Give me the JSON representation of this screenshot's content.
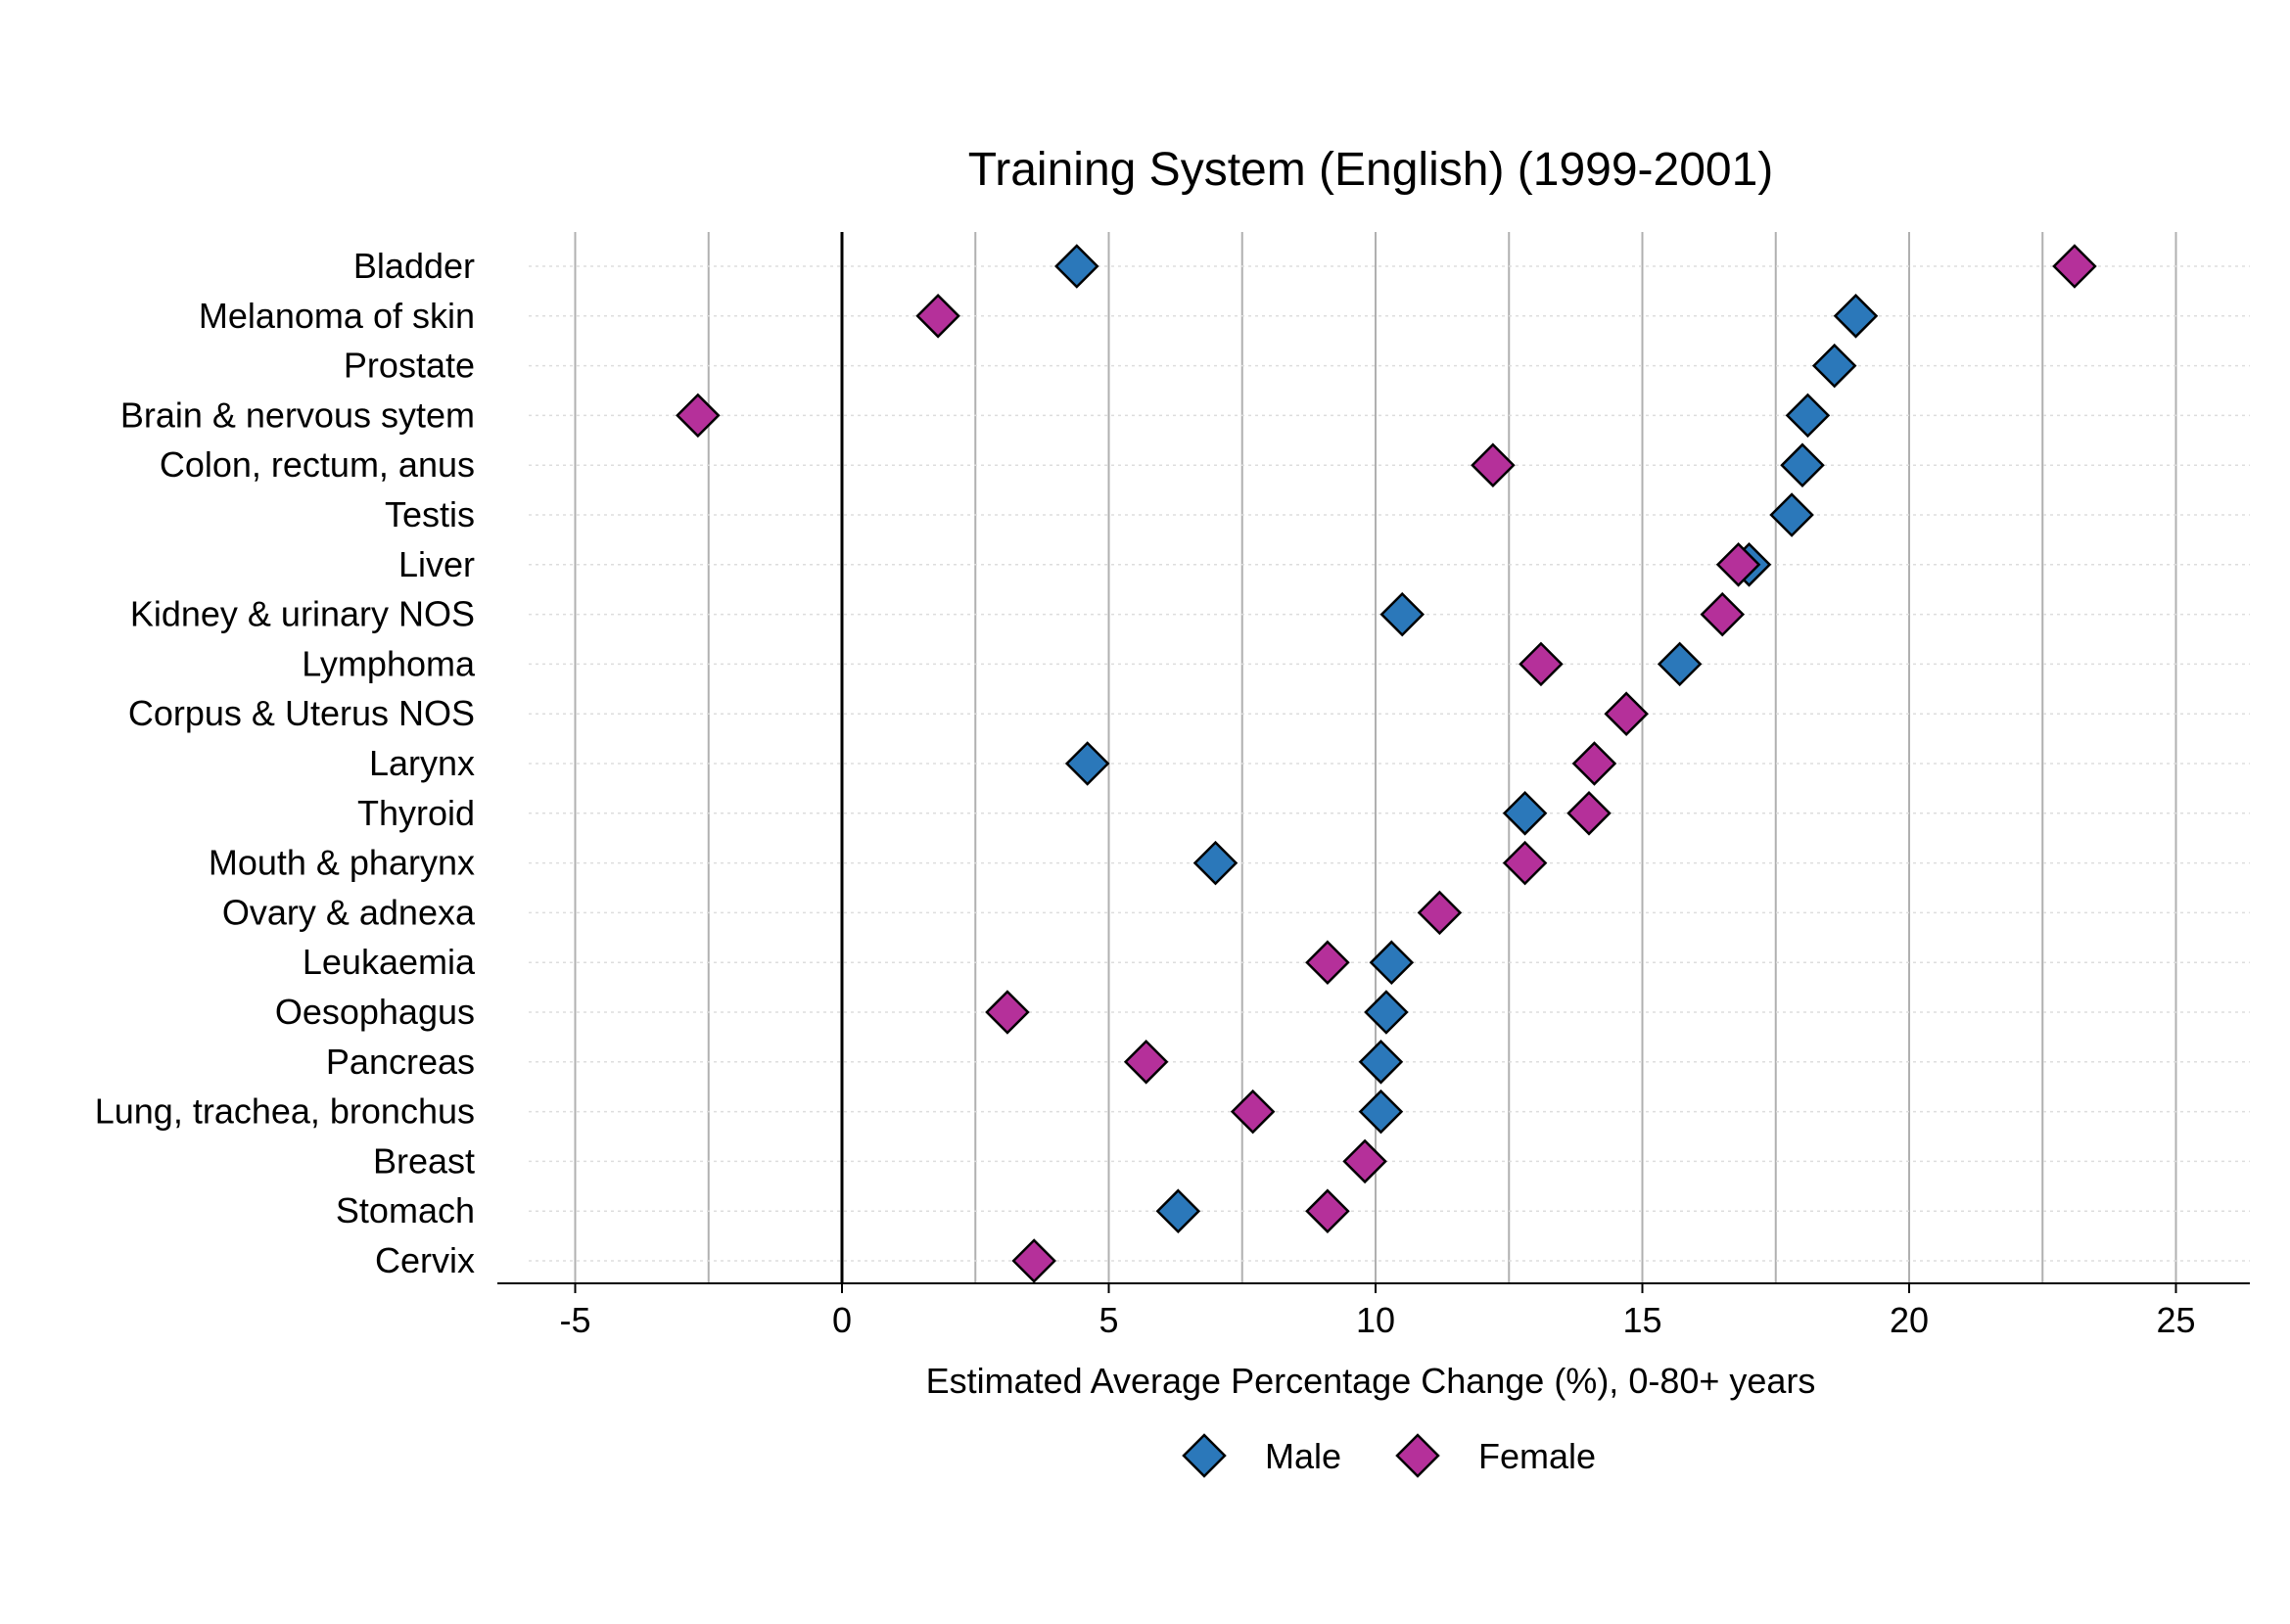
{
  "chart_data": {
    "type": "scatter",
    "title": "Training System (English) (1999-2001)",
    "xlabel": "Estimated Average Percentage Change (%), 0-80+ years",
    "ylabel": "",
    "xlim": [
      -5,
      25
    ],
    "xticks": [
      -5,
      0,
      5,
      10,
      15,
      20,
      25
    ],
    "grid": true,
    "legend_position": "bottom",
    "categories": [
      "Bladder",
      "Melanoma of skin",
      "Prostate",
      "Brain & nervous sytem",
      "Colon, rectum, anus",
      "Testis",
      "Liver",
      "Kidney & urinary NOS",
      "Lymphoma",
      "Corpus & Uterus NOS",
      "Larynx",
      "Thyroid",
      "Mouth & pharynx",
      "Ovary & adnexa",
      "Leukaemia",
      "Oesophagus",
      "Pancreas",
      "Lung, trachea, bronchus",
      "Breast",
      "Stomach",
      "Cervix"
    ],
    "series": [
      {
        "name": "Male",
        "color": "#2b78ba",
        "values": [
          4.4,
          19.0,
          18.6,
          18.1,
          18.0,
          17.8,
          17.0,
          10.5,
          15.7,
          null,
          4.6,
          12.8,
          7.0,
          null,
          10.3,
          10.2,
          10.1,
          10.1,
          null,
          6.3,
          null
        ]
      },
      {
        "name": "Female",
        "color": "#b5309a",
        "values": [
          23.1,
          1.8,
          null,
          -2.7,
          12.2,
          null,
          16.8,
          16.5,
          13.1,
          14.7,
          14.1,
          14.0,
          12.8,
          11.2,
          9.1,
          3.1,
          5.7,
          7.7,
          9.8,
          9.1,
          3.6
        ]
      }
    ]
  }
}
